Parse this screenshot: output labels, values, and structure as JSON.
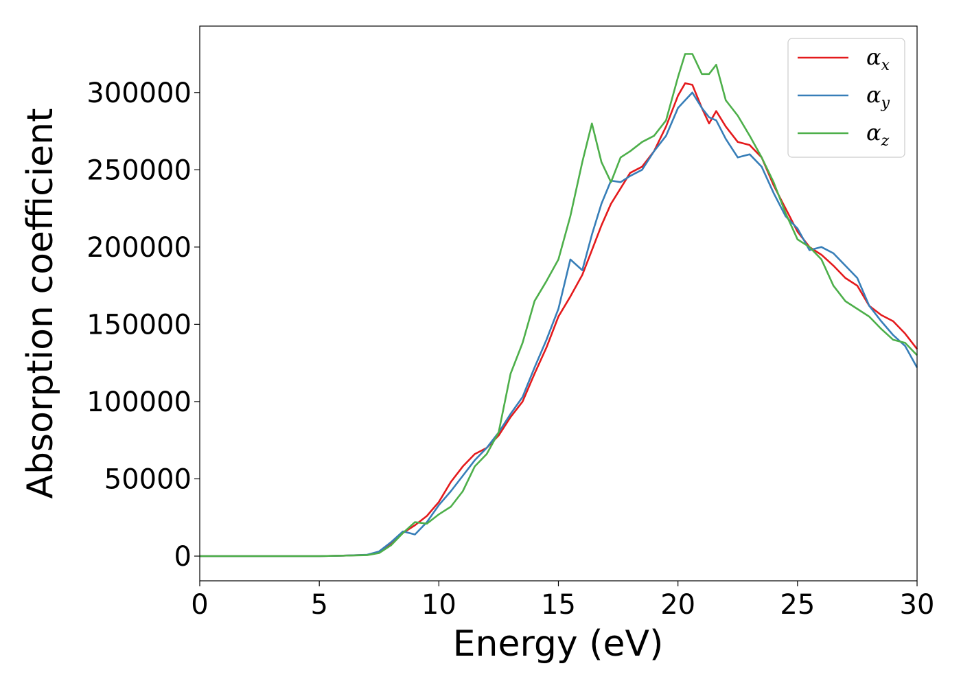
{
  "chart_data": {
    "type": "line",
    "xlabel": "Energy (eV)",
    "ylabel": "Absorption coefficient",
    "xlim": [
      0,
      30
    ],
    "ylim": [
      -16000,
      343000
    ],
    "x_ticks": [
      "0",
      "5",
      "10",
      "15",
      "20",
      "25",
      "30"
    ],
    "y_ticks": [
      "0",
      "50000",
      "100000",
      "150000",
      "200000",
      "250000",
      "300000"
    ],
    "grid": false,
    "legend_position": "top-right",
    "x": [
      0,
      5,
      6,
      7,
      7.5,
      8,
      8.5,
      9,
      9.5,
      10,
      10.5,
      11,
      11.5,
      12,
      12.5,
      13,
      13.5,
      14,
      14.5,
      15,
      15.5,
      16,
      16.4,
      16.8,
      17.2,
      17.6,
      18,
      18.5,
      19,
      19.5,
      20,
      20.3,
      20.6,
      21,
      21.3,
      21.6,
      22,
      22.5,
      23,
      23.5,
      24,
      24.5,
      25,
      25.5,
      26,
      26.5,
      27,
      27.5,
      28,
      28.5,
      29,
      29.5,
      30
    ],
    "series": [
      {
        "name": "αx",
        "label_base": "α",
        "label_sub": "x",
        "color": "#e41a1c",
        "values": [
          0,
          0,
          300,
          800,
          2500,
          8000,
          15000,
          20000,
          26000,
          35000,
          48000,
          58000,
          66000,
          70000,
          78000,
          90000,
          100000,
          118000,
          135000,
          155000,
          168000,
          182000,
          198000,
          214000,
          228000,
          238000,
          248000,
          252000,
          262000,
          278000,
          298000,
          306000,
          305000,
          290000,
          280000,
          288000,
          278000,
          268000,
          266000,
          258000,
          240000,
          225000,
          210000,
          200000,
          195000,
          188000,
          180000,
          175000,
          162000,
          156000,
          152000,
          144000,
          134000
        ]
      },
      {
        "name": "αy",
        "label_base": "α",
        "label_sub": "y",
        "color": "#377eb8",
        "values": [
          0,
          0,
          300,
          900,
          3000,
          9000,
          16000,
          14000,
          22000,
          33000,
          42000,
          52000,
          62000,
          70000,
          80000,
          92000,
          103000,
          122000,
          140000,
          160000,
          192000,
          185000,
          208000,
          228000,
          243000,
          242000,
          246000,
          250000,
          262000,
          272000,
          290000,
          295000,
          300000,
          290000,
          284000,
          282000,
          270000,
          258000,
          260000,
          252000,
          235000,
          220000,
          212000,
          198000,
          200000,
          196000,
          188000,
          180000,
          162000,
          152000,
          143000,
          136000,
          122000
        ]
      },
      {
        "name": "αz",
        "label_base": "α",
        "label_sub": "z",
        "color": "#4daf4a",
        "values": [
          0,
          0,
          300,
          600,
          2000,
          7000,
          15000,
          22000,
          21000,
          27000,
          32000,
          42000,
          58000,
          66000,
          80000,
          118000,
          138000,
          165000,
          178000,
          192000,
          220000,
          255000,
          280000,
          255000,
          242000,
          258000,
          262000,
          268000,
          272000,
          282000,
          310000,
          325000,
          325000,
          312000,
          312000,
          318000,
          295000,
          285000,
          272000,
          258000,
          242000,
          222000,
          205000,
          200000,
          192000,
          175000,
          165000,
          160000,
          155000,
          147000,
          140000,
          138000,
          130000
        ]
      }
    ]
  }
}
